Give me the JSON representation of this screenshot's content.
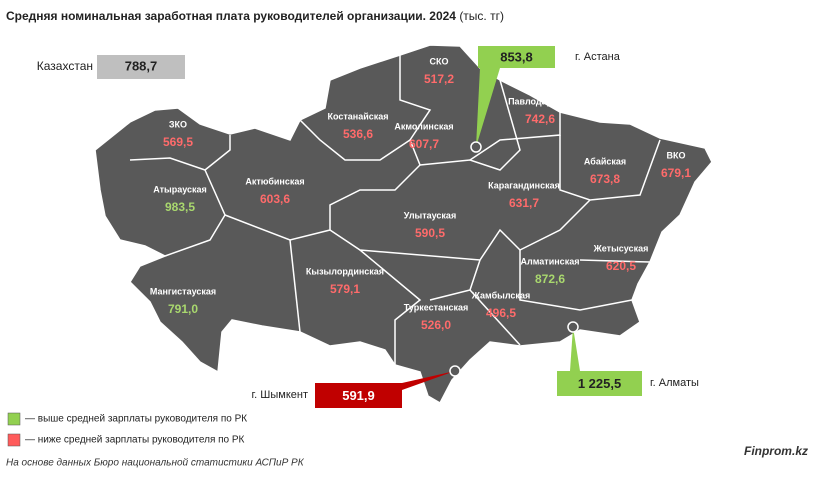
{
  "header": {
    "title": "Средняя номинальная заработная плата руководителей организации. 2024",
    "unit": "(тыс. тг)"
  },
  "country": {
    "label": "Казахстан",
    "value": "788,7",
    "color": "#bfbfbf"
  },
  "regions": [
    {
      "name": "ЗКО",
      "value": "569,5",
      "color": "#ff6b6b"
    },
    {
      "name": "Атырауская",
      "value": "983,5",
      "color": "#a9d86e"
    },
    {
      "name": "Актюбинская",
      "value": "603,6",
      "color": "#ff6b6b"
    },
    {
      "name": "Мангистауская",
      "value": "791,0",
      "color": "#a9d86e"
    },
    {
      "name": "Костанайская",
      "value": "536,6",
      "color": "#ff6b6b"
    },
    {
      "name": "СКО",
      "value": "517,2",
      "color": "#ff6b6b"
    },
    {
      "name": "Акмолинская",
      "value": "607,7",
      "color": "#ff6b6b"
    },
    {
      "name": "Павлодарская",
      "value": "742,6",
      "color": "#ff6b6b"
    },
    {
      "name": "Абайская",
      "value": "673,8",
      "color": "#ff6b6b"
    },
    {
      "name": "ВКО",
      "value": "679,1",
      "color": "#ff6b6b"
    },
    {
      "name": "Карагандинская",
      "value": "631,7",
      "color": "#ff6b6b"
    },
    {
      "name": "Улытауская",
      "value": "590,5",
      "color": "#ff6b6b"
    },
    {
      "name": "Кызылординская",
      "value": "579,1",
      "color": "#ff6b6b"
    },
    {
      "name": "Жетысуская",
      "value": "620,5",
      "color": "#ff6b6b"
    },
    {
      "name": "Алматинская",
      "value": "872,6",
      "color": "#a9d86e"
    },
    {
      "name": "Жамбылская",
      "value": "496,5",
      "color": "#ff6b6b"
    },
    {
      "name": "Туркестанская",
      "value": "526,0",
      "color": "#ff6b6b"
    }
  ],
  "cities": [
    {
      "name": "г. Астана",
      "value": "853,8",
      "color": "#92d050"
    },
    {
      "name": "г. Алматы",
      "value": "1 225,5",
      "color": "#92d050"
    },
    {
      "name": "г. Шымкент",
      "value": "591,9",
      "color": "#c00000"
    }
  ],
  "legend": [
    {
      "label": "— выше средней зарплаты руководителя по РК",
      "color": "#92d050"
    },
    {
      "label": "— ниже средней зарплаты руководителя по РК",
      "color": "#ff5b5b"
    }
  ],
  "footer": {
    "source": "На основе данных Бюро национальной статистики АСПиР РК",
    "brand": "Finprom.kz"
  }
}
